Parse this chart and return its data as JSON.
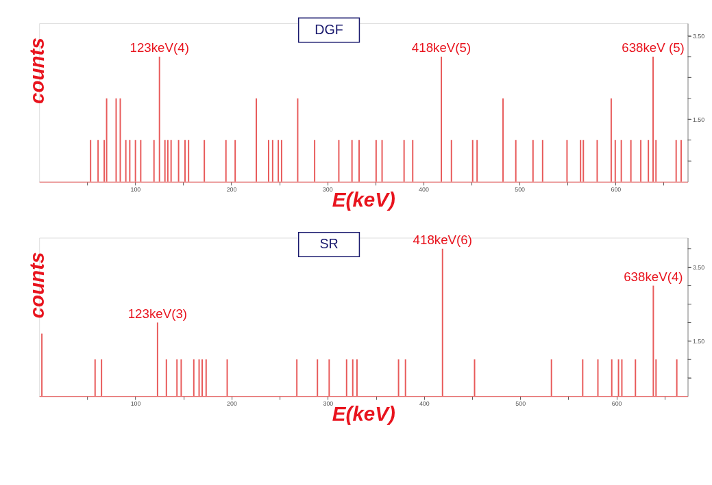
{
  "chart_data": [
    {
      "type": "bar",
      "title": "DGF",
      "xlabel": "E(keV)",
      "ylabel": "counts",
      "color": "#e85a5a",
      "x": [
        53.5,
        61.3,
        67.7,
        70.2,
        80.1,
        84.4,
        90.2,
        94.3,
        100.2,
        105.7,
        119.5,
        125.2,
        130.9,
        133.9,
        137.3,
        145.1,
        151.8,
        155.5,
        171.9,
        194.4,
        204.0,
        226.0,
        238.8,
        243.0,
        248.9,
        252.3,
        269.1,
        286.7,
        311.9,
        325.6,
        333.0,
        350.7,
        356.9,
        379.8,
        388.8,
        418.6,
        429.1,
        451.2,
        455.8,
        482.8,
        496.1,
        514.0,
        524.0,
        549.4,
        563.5,
        566.4,
        580.8,
        595.4,
        599.6,
        605.9,
        615.9,
        626.2,
        634.1,
        639.0,
        642.0,
        663.0,
        668.2
      ],
      "values": [
        1,
        1,
        1,
        2,
        2,
        2,
        1,
        1,
        1,
        1,
        1,
        3,
        1,
        1,
        1,
        1,
        1,
        1,
        1,
        1,
        1,
        2,
        1,
        1,
        1,
        1,
        2,
        1,
        1,
        1,
        1,
        1,
        1,
        1,
        1,
        3,
        1,
        1,
        1,
        2,
        1,
        1,
        1,
        1,
        1,
        1,
        1,
        2,
        1,
        1,
        1,
        1,
        1,
        3,
        1,
        1,
        1
      ],
      "xlim": [
        0,
        675
      ],
      "ylim": [
        0,
        3.8
      ],
      "xticks": [
        {
          "value": 50,
          "label": null
        },
        100,
        {
          "value": 150,
          "label": null
        },
        200,
        {
          "value": 250,
          "label": null
        },
        300,
        {
          "value": 350,
          "label": null
        },
        400,
        {
          "value": 450,
          "label": null
        },
        500,
        {
          "value": 550,
          "label": null
        },
        600,
        {
          "value": 650,
          "label": null
        }
      ],
      "yticks": [
        {
          "value": 0.5,
          "label": null
        },
        {
          "value": 1,
          "label": null
        },
        {
          "value": 1.5,
          "label": "1.50"
        },
        {
          "value": 2,
          "label": null
        },
        {
          "value": 2.5,
          "label": null
        },
        {
          "value": 3,
          "label": null
        },
        {
          "value": 3.5,
          "label": "3.50"
        }
      ],
      "grid": false,
      "annotations": [
        {
          "text": "123keV(4)",
          "x": 125.2,
          "y": 3
        },
        {
          "text": "418keV(5)",
          "x": 418.6,
          "y": 3
        },
        {
          "text": "638keV (5)",
          "x": 639.0,
          "y": 3
        }
      ]
    },
    {
      "type": "bar",
      "title": "SR",
      "xlabel": "E(keV)",
      "ylabel": "counts",
      "color": "#e85a5a",
      "x": [
        2.8,
        58.1,
        64.8,
        123.0,
        132.2,
        143.2,
        147.6,
        160.7,
        166.2,
        169.4,
        173.5,
        195.4,
        267.8,
        289.2,
        301.4,
        319.5,
        325.9,
        330.3,
        373.5,
        380.7,
        419.2,
        452.5,
        532.4,
        564.9,
        580.7,
        595.1,
        602.1,
        605.6,
        619.7,
        638.3,
        641.1,
        662.7
      ],
      "values": [
        1.7,
        1,
        1,
        2,
        1,
        1,
        1,
        1,
        1,
        1,
        1,
        1,
        1,
        1,
        1,
        1,
        1,
        1,
        1,
        1,
        4,
        1,
        1,
        1,
        1,
        1,
        1,
        1,
        1,
        3,
        1,
        1
      ],
      "xlim": [
        0,
        674
      ],
      "ylim": [
        0,
        4.3
      ],
      "xticks": [
        {
          "value": 50,
          "label": null
        },
        100,
        {
          "value": 150,
          "label": null
        },
        200,
        {
          "value": 250,
          "label": null
        },
        300,
        {
          "value": 350,
          "label": null
        },
        400,
        {
          "value": 450,
          "label": null
        },
        500,
        {
          "value": 550,
          "label": null
        },
        600,
        {
          "value": 650,
          "label": null
        }
      ],
      "yticks": [
        {
          "value": 0.5,
          "label": null
        },
        {
          "value": 1,
          "label": null
        },
        {
          "value": 1.5,
          "label": "1.50"
        },
        {
          "value": 2,
          "label": null
        },
        {
          "value": 2.5,
          "label": null
        },
        {
          "value": 3,
          "label": null
        },
        {
          "value": 3.5,
          "label": "3.50"
        },
        {
          "value": 4,
          "label": null
        }
      ],
      "grid": false,
      "annotations": [
        {
          "text": "123keV(3)",
          "x": 123.0,
          "y": 2
        },
        {
          "text": "418keV(6)",
          "x": 419.2,
          "y": 4
        },
        {
          "text": "638keV(4)",
          "x": 638.3,
          "y": 3
        }
      ]
    }
  ]
}
